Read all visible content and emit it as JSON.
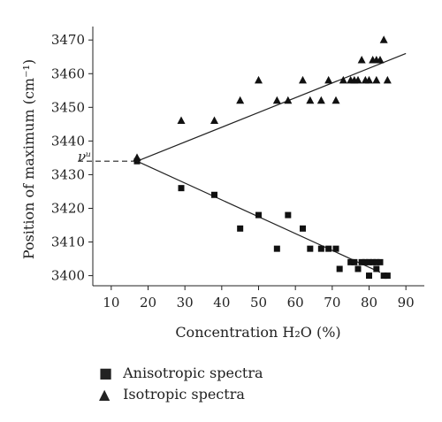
{
  "chart_data": {
    "type": "scatter",
    "xlabel": "Concentration H₂O (%)",
    "ylabel": "Position of maximum (cm⁻¹)",
    "x_ticks": [
      10,
      20,
      30,
      40,
      50,
      60,
      70,
      80,
      90
    ],
    "y_ticks": [
      3400,
      3410,
      3420,
      3430,
      3440,
      3450,
      3460,
      3470
    ],
    "xlim": [
      5,
      95
    ],
    "ylim": [
      3397,
      3474
    ],
    "annotation": "νᵘ",
    "annotation_value": 3434,
    "legend_position": "bottom",
    "series": [
      {
        "name": "Anisotropic spectra",
        "marker": "square",
        "points": [
          [
            17,
            3434
          ],
          [
            29,
            3426
          ],
          [
            38,
            3424
          ],
          [
            45,
            3414
          ],
          [
            50,
            3418
          ],
          [
            55,
            3408
          ],
          [
            58,
            3418
          ],
          [
            62,
            3414
          ],
          [
            64,
            3408
          ],
          [
            67,
            3408
          ],
          [
            69,
            3408
          ],
          [
            71,
            3408
          ],
          [
            72,
            3402
          ],
          [
            75,
            3404
          ],
          [
            76,
            3404
          ],
          [
            77,
            3402
          ],
          [
            78,
            3404
          ],
          [
            79,
            3404
          ],
          [
            80,
            3400
          ],
          [
            80,
            3404
          ],
          [
            81,
            3404
          ],
          [
            82,
            3402
          ],
          [
            82,
            3404
          ],
          [
            83,
            3404
          ],
          [
            84,
            3400
          ],
          [
            85,
            3400
          ]
        ],
        "fit": [
          [
            17,
            3434
          ],
          [
            83,
            3401
          ]
        ]
      },
      {
        "name": "Isotropic spectra",
        "marker": "triangle",
        "points": [
          [
            17,
            3435
          ],
          [
            29,
            3446
          ],
          [
            38,
            3446
          ],
          [
            45,
            3452
          ],
          [
            50,
            3458
          ],
          [
            55,
            3452
          ],
          [
            58,
            3452
          ],
          [
            62,
            3458
          ],
          [
            64,
            3452
          ],
          [
            67,
            3452
          ],
          [
            69,
            3458
          ],
          [
            71,
            3452
          ],
          [
            73,
            3458
          ],
          [
            75,
            3458
          ],
          [
            76,
            3458
          ],
          [
            77,
            3458
          ],
          [
            78,
            3464
          ],
          [
            79,
            3458
          ],
          [
            80,
            3458
          ],
          [
            81,
            3464
          ],
          [
            82,
            3458
          ],
          [
            82,
            3464
          ],
          [
            83,
            3464
          ],
          [
            84,
            3470
          ],
          [
            85,
            3458
          ]
        ],
        "fit": [
          [
            17,
            3434
          ],
          [
            90,
            3466
          ]
        ]
      }
    ]
  }
}
